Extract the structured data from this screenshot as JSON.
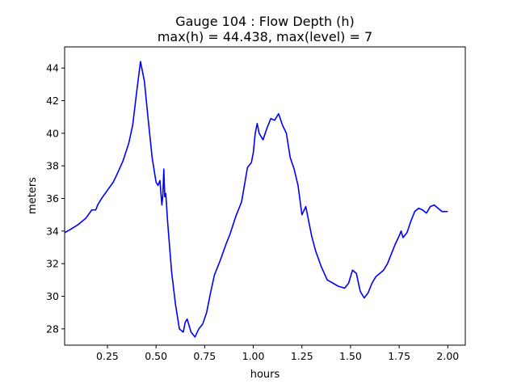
{
  "chart_data": {
    "type": "line",
    "title_line1": "Gauge 104 : Flow Depth (h)",
    "title_line2": "max(h) =  44.438,    max(level) = 7",
    "xlabel": "hours",
    "ylabel": "meters",
    "xlim": [
      0.03,
      2.09
    ],
    "ylim": [
      27.0,
      45.3
    ],
    "xticks": [
      0.25,
      0.5,
      0.75,
      1.0,
      1.25,
      1.5,
      1.75,
      2.0
    ],
    "xtick_labels": [
      "0.25",
      "0.50",
      "0.75",
      "1.00",
      "1.25",
      "1.50",
      "1.75",
      "2.00"
    ],
    "yticks": [
      28,
      30,
      32,
      34,
      36,
      38,
      40,
      42,
      44
    ],
    "ytick_labels": [
      "28",
      "30",
      "32",
      "34",
      "36",
      "38",
      "40",
      "42",
      "44"
    ],
    "grid": false,
    "series": [
      {
        "color": "#0000ff",
        "x": [
          0.03,
          0.06,
          0.1,
          0.14,
          0.17,
          0.19,
          0.2,
          0.22,
          0.25,
          0.28,
          0.3,
          0.33,
          0.36,
          0.38,
          0.4,
          0.42,
          0.44,
          0.46,
          0.48,
          0.5,
          0.51,
          0.52,
          0.53,
          0.535,
          0.54,
          0.545,
          0.55,
          0.56,
          0.58,
          0.6,
          0.62,
          0.64,
          0.65,
          0.66,
          0.67,
          0.68,
          0.7,
          0.72,
          0.74,
          0.76,
          0.78,
          0.8,
          0.83,
          0.86,
          0.88,
          0.91,
          0.94,
          0.97,
          0.99,
          1.0,
          1.01,
          1.02,
          1.03,
          1.05,
          1.07,
          1.09,
          1.11,
          1.13,
          1.15,
          1.17,
          1.19,
          1.21,
          1.23,
          1.25,
          1.27,
          1.28,
          1.29,
          1.3,
          1.32,
          1.35,
          1.38,
          1.41,
          1.44,
          1.47,
          1.49,
          1.51,
          1.53,
          1.55,
          1.57,
          1.59,
          1.61,
          1.63,
          1.65,
          1.67,
          1.69,
          1.71,
          1.73,
          1.75,
          1.76,
          1.77,
          1.79,
          1.81,
          1.83,
          1.85,
          1.87,
          1.89,
          1.91,
          1.93,
          1.95,
          1.97,
          2.0
        ],
        "y": [
          33.9,
          34.1,
          34.4,
          34.8,
          35.3,
          35.3,
          35.6,
          36.0,
          36.5,
          37.0,
          37.5,
          38.3,
          39.4,
          40.5,
          42.5,
          44.4,
          43.2,
          40.8,
          38.5,
          37.0,
          36.8,
          37.1,
          35.6,
          36.2,
          37.8,
          36.1,
          36.3,
          34.5,
          31.5,
          29.5,
          28.0,
          27.8,
          28.4,
          28.6,
          28.2,
          27.8,
          27.5,
          28.0,
          28.3,
          29.0,
          30.2,
          31.3,
          32.2,
          33.2,
          33.8,
          34.9,
          35.8,
          37.9,
          38.2,
          38.8,
          40.0,
          40.6,
          40.0,
          39.6,
          40.3,
          40.9,
          40.8,
          41.2,
          40.5,
          40.0,
          38.5,
          37.8,
          36.8,
          35.0,
          35.5,
          34.9,
          34.3,
          33.7,
          32.8,
          31.8,
          31.0,
          30.8,
          30.6,
          30.5,
          30.8,
          31.6,
          31.4,
          30.3,
          29.9,
          30.2,
          30.8,
          31.2,
          31.4,
          31.6,
          32.0,
          32.6,
          33.2,
          33.7,
          34.0,
          33.6,
          33.9,
          34.6,
          35.2,
          35.4,
          35.3,
          35.1,
          35.5,
          35.6,
          35.4,
          35.2,
          35.2
        ]
      }
    ]
  }
}
